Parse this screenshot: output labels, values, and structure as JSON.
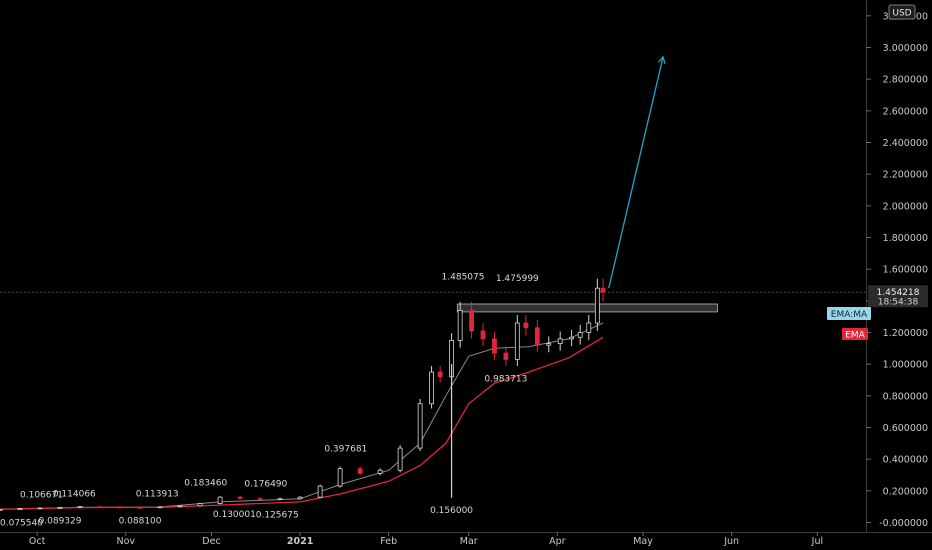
{
  "currency": "USD",
  "colors": {
    "background": "#000000",
    "bull": "#d6d6d6",
    "bear": "#e0263a",
    "ema": "#e0263a",
    "ma": "#8a8a8a",
    "projection_arrow": "#1fa6c9",
    "zone": "#3a3a3a",
    "price_line": "#7a7a7a"
  },
  "labels": {
    "current_price": "1.454218",
    "countdown": "18:54:38",
    "ema_ma": "EMA:MA",
    "ema": "EMA"
  },
  "chart_data": {
    "type": "line",
    "instrument_view": "candlestick",
    "x_axis": {
      "type": "date",
      "range": [
        "2020-09-18",
        "2021-07-18"
      ],
      "ticks": [
        {
          "date": "2020-10-01",
          "label": "Oct"
        },
        {
          "date": "2020-11-01",
          "label": "Nov"
        },
        {
          "date": "2020-12-01",
          "label": "Dec"
        },
        {
          "date": "2021-01-01",
          "label": "2021"
        },
        {
          "date": "2021-02-01",
          "label": "Feb"
        },
        {
          "date": "2021-03-01",
          "label": "Mar"
        },
        {
          "date": "2021-04-01",
          "label": "Apr"
        },
        {
          "date": "2021-05-01",
          "label": "May"
        },
        {
          "date": "2021-06-01",
          "label": "Jun"
        },
        {
          "date": "2021-07-01",
          "label": "Jul"
        }
      ]
    },
    "y_axis": {
      "side": "right",
      "range": [
        -0.06,
        3.3
      ],
      "ticks": [
        "-0.000000",
        "0.200000",
        "0.400000",
        "0.600000",
        "0.800000",
        "1.000000",
        "1.200000",
        "1.400000",
        "1.600000",
        "1.800000",
        "2.000000",
        "2.200000",
        "2.400000",
        "2.600000",
        "2.800000",
        "3.000000",
        "3.200000"
      ]
    },
    "grid": false,
    "series": [
      {
        "role": "price",
        "name": "",
        "points": [
          {
            "x": "2020-09-18",
            "y": 0.083
          },
          {
            "x": "2020-09-25",
            "y": 0.088
          },
          {
            "x": "2020-10-02",
            "y": 0.092
          },
          {
            "x": "2020-10-09",
            "y": 0.095
          },
          {
            "x": "2020-10-16",
            "y": 0.1
          },
          {
            "x": "2020-10-23",
            "y": 0.099
          },
          {
            "x": "2020-10-30",
            "y": 0.096
          },
          {
            "x": "2020-11-06",
            "y": 0.095
          },
          {
            "x": "2020-11-13",
            "y": 0.099
          },
          {
            "x": "2020-11-20",
            "y": 0.105
          },
          {
            "x": "2020-11-27",
            "y": 0.12
          },
          {
            "x": "2020-12-04",
            "y": 0.16
          },
          {
            "x": "2020-12-11",
            "y": 0.152
          },
          {
            "x": "2020-12-18",
            "y": 0.148
          },
          {
            "x": "2020-12-25",
            "y": 0.15
          },
          {
            "x": "2021-01-01",
            "y": 0.16
          },
          {
            "x": "2021-01-08",
            "y": 0.23
          },
          {
            "x": "2021-01-15",
            "y": 0.34
          },
          {
            "x": "2021-01-22",
            "y": 0.31
          },
          {
            "x": "2021-01-29",
            "y": 0.33
          },
          {
            "x": "2021-02-05",
            "y": 0.47
          },
          {
            "x": "2021-02-12",
            "y": 0.75
          },
          {
            "x": "2021-02-16",
            "y": 0.95
          },
          {
            "x": "2021-02-19",
            "y": 0.92
          },
          {
            "x": "2021-02-23",
            "y": 1.15
          },
          {
            "x": "2021-02-26",
            "y": 1.34
          },
          {
            "x": "2021-03-02",
            "y": 1.21
          },
          {
            "x": "2021-03-06",
            "y": 1.16
          },
          {
            "x": "2021-03-10",
            "y": 1.07
          },
          {
            "x": "2021-03-14",
            "y": 1.03
          },
          {
            "x": "2021-03-18",
            "y": 1.26
          },
          {
            "x": "2021-03-21",
            "y": 1.23
          },
          {
            "x": "2021-03-25",
            "y": 1.12
          },
          {
            "x": "2021-03-29",
            "y": 1.13
          },
          {
            "x": "2021-04-02",
            "y": 1.16
          },
          {
            "x": "2021-04-06",
            "y": 1.17
          },
          {
            "x": "2021-04-09",
            "y": 1.2
          },
          {
            "x": "2021-04-12",
            "y": 1.26
          },
          {
            "x": "2021-04-15",
            "y": 1.48
          },
          {
            "x": "2021-04-17",
            "y": 1.4542
          }
        ]
      },
      {
        "role": "ma",
        "name": "",
        "points": [
          {
            "x": "2020-09-18",
            "y": 0.084
          },
          {
            "x": "2020-10-16",
            "y": 0.096
          },
          {
            "x": "2020-11-13",
            "y": 0.098
          },
          {
            "x": "2020-12-04",
            "y": 0.13
          },
          {
            "x": "2021-01-01",
            "y": 0.15
          },
          {
            "x": "2021-01-15",
            "y": 0.24
          },
          {
            "x": "2021-02-01",
            "y": 0.33
          },
          {
            "x": "2021-02-12",
            "y": 0.5
          },
          {
            "x": "2021-02-21",
            "y": 0.8
          },
          {
            "x": "2021-03-01",
            "y": 1.05
          },
          {
            "x": "2021-03-10",
            "y": 1.1
          },
          {
            "x": "2021-03-22",
            "y": 1.11
          },
          {
            "x": "2021-04-05",
            "y": 1.16
          },
          {
            "x": "2021-04-17",
            "y": 1.26
          }
        ]
      },
      {
        "role": "ema",
        "name": "EMA",
        "points": [
          {
            "x": "2020-09-18",
            "y": 0.084
          },
          {
            "x": "2020-10-16",
            "y": 0.094
          },
          {
            "x": "2020-11-13",
            "y": 0.096
          },
          {
            "x": "2020-12-04",
            "y": 0.11
          },
          {
            "x": "2021-01-01",
            "y": 0.13
          },
          {
            "x": "2021-01-15",
            "y": 0.18
          },
          {
            "x": "2021-02-01",
            "y": 0.26
          },
          {
            "x": "2021-02-12",
            "y": 0.36
          },
          {
            "x": "2021-02-21",
            "y": 0.5
          },
          {
            "x": "2021-03-01",
            "y": 0.75
          },
          {
            "x": "2021-03-10",
            "y": 0.88
          },
          {
            "x": "2021-03-22",
            "y": 0.95
          },
          {
            "x": "2021-04-05",
            "y": 1.04
          },
          {
            "x": "2021-04-17",
            "y": 1.17
          }
        ]
      }
    ],
    "wick_low": {
      "x": "2021-02-23",
      "y": 0.156
    },
    "annotations": [
      {
        "x": "2020-09-18",
        "y": 0.0755,
        "text": "0.075540",
        "pos": "below"
      },
      {
        "x": "2020-09-25",
        "y": 0.1067,
        "text": "0.106671",
        "pos": "above"
      },
      {
        "x": "2020-10-09",
        "y": 0.0893,
        "text": "0.089329",
        "pos": "below"
      },
      {
        "x": "2020-10-14",
        "y": 0.1141,
        "text": "0.114066",
        "pos": "above"
      },
      {
        "x": "2020-11-06",
        "y": 0.0881,
        "text": "0.088100",
        "pos": "below"
      },
      {
        "x": "2020-11-12",
        "y": 0.1139,
        "text": "0.113913",
        "pos": "above"
      },
      {
        "x": "2020-11-29",
        "y": 0.1835,
        "text": "0.183460",
        "pos": "above"
      },
      {
        "x": "2020-12-09",
        "y": 0.13,
        "text": "0.130001",
        "pos": "below"
      },
      {
        "x": "2020-12-20",
        "y": 0.1765,
        "text": "0.176490",
        "pos": "above"
      },
      {
        "x": "2020-12-24",
        "y": 0.1257,
        "text": "0.125675",
        "pos": "below"
      },
      {
        "x": "2021-01-17",
        "y": 0.3977,
        "text": "0.397681",
        "pos": "above"
      },
      {
        "x": "2021-02-23",
        "y": 0.156,
        "text": "0.156000",
        "pos": "below"
      },
      {
        "x": "2021-02-27",
        "y": 1.4851,
        "text": "1.485075",
        "pos": "above"
      },
      {
        "x": "2021-03-18",
        "y": 1.476,
        "text": "1.475999",
        "pos": "above"
      },
      {
        "x": "2021-03-14",
        "y": 0.9837,
        "text": "0.983713",
        "pos": "below"
      }
    ],
    "zone": {
      "x_start": "2021-02-25",
      "x_end": "2021-05-27",
      "y_low": 1.33,
      "y_high": 1.38
    },
    "projection_arrow": {
      "from": {
        "x": "2021-04-19",
        "y": 1.48
      },
      "to": {
        "x": "2021-05-08",
        "y": 2.94
      }
    },
    "last_price": 1.454218
  }
}
